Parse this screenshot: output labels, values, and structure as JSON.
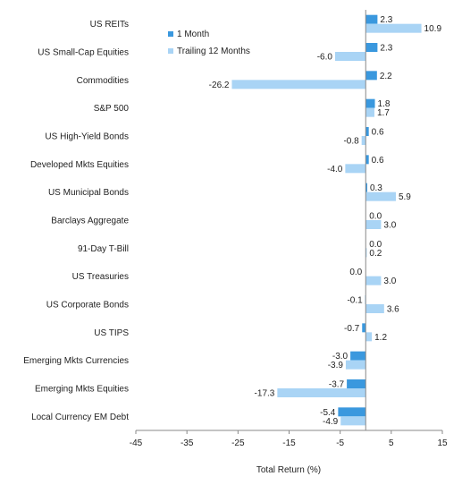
{
  "chart_data": {
    "type": "bar",
    "orientation": "horizontal",
    "title": "",
    "xlabel": "Total Return (%)",
    "ylabel": "",
    "xlim": [
      -45,
      15
    ],
    "xticks": [
      "-45",
      "-35",
      "-25",
      "-15",
      "-5",
      "5",
      "15"
    ],
    "grid": false,
    "legend_position": "top-center",
    "categories": [
      "US REITs",
      "US Small-Cap Equities",
      "Commodities",
      "S&P 500",
      "US High-Yield Bonds",
      "Developed Mkts Equities",
      "US Municipal Bonds",
      "Barclays Aggregate",
      "91-Day T-Bill",
      "US Treasuries",
      "US Corporate Bonds",
      "US TIPS",
      "Emerging Mkts Currencies",
      "Emerging Mkts Equities",
      "Local Currency EM Debt"
    ],
    "series": [
      {
        "name": "1 Month",
        "color": "#3a98de",
        "values": [
          2.3,
          2.3,
          2.2,
          1.8,
          0.6,
          0.6,
          0.3,
          0.0,
          0.0,
          0.0,
          -0.1,
          -0.7,
          -3.0,
          -3.7,
          -5.4
        ],
        "labels": [
          "2.3",
          "2.3",
          "2.2",
          "1.8",
          "0.6",
          "0.6",
          "0.3",
          "0.0",
          "0.0",
          "0.0",
          "-0.1",
          "-0.7",
          "-3.0",
          "-3.7",
          "-5.4"
        ]
      },
      {
        "name": "Trailing 12 Months",
        "color": "#a9d4f5",
        "values": [
          10.9,
          -6.0,
          -26.2,
          1.7,
          -0.8,
          -4.0,
          5.9,
          3.0,
          0.2,
          3.0,
          3.6,
          1.2,
          -3.9,
          -17.3,
          -4.9
        ],
        "labels": [
          "10.9",
          "-6.0",
          "-26.2",
          "1.7",
          "-0.8",
          "-4.0",
          "5.9",
          "3.0",
          "0.2",
          "3.0",
          "3.6",
          "1.2",
          "-3.9",
          "-17.3",
          "-4.9"
        ]
      }
    ]
  }
}
